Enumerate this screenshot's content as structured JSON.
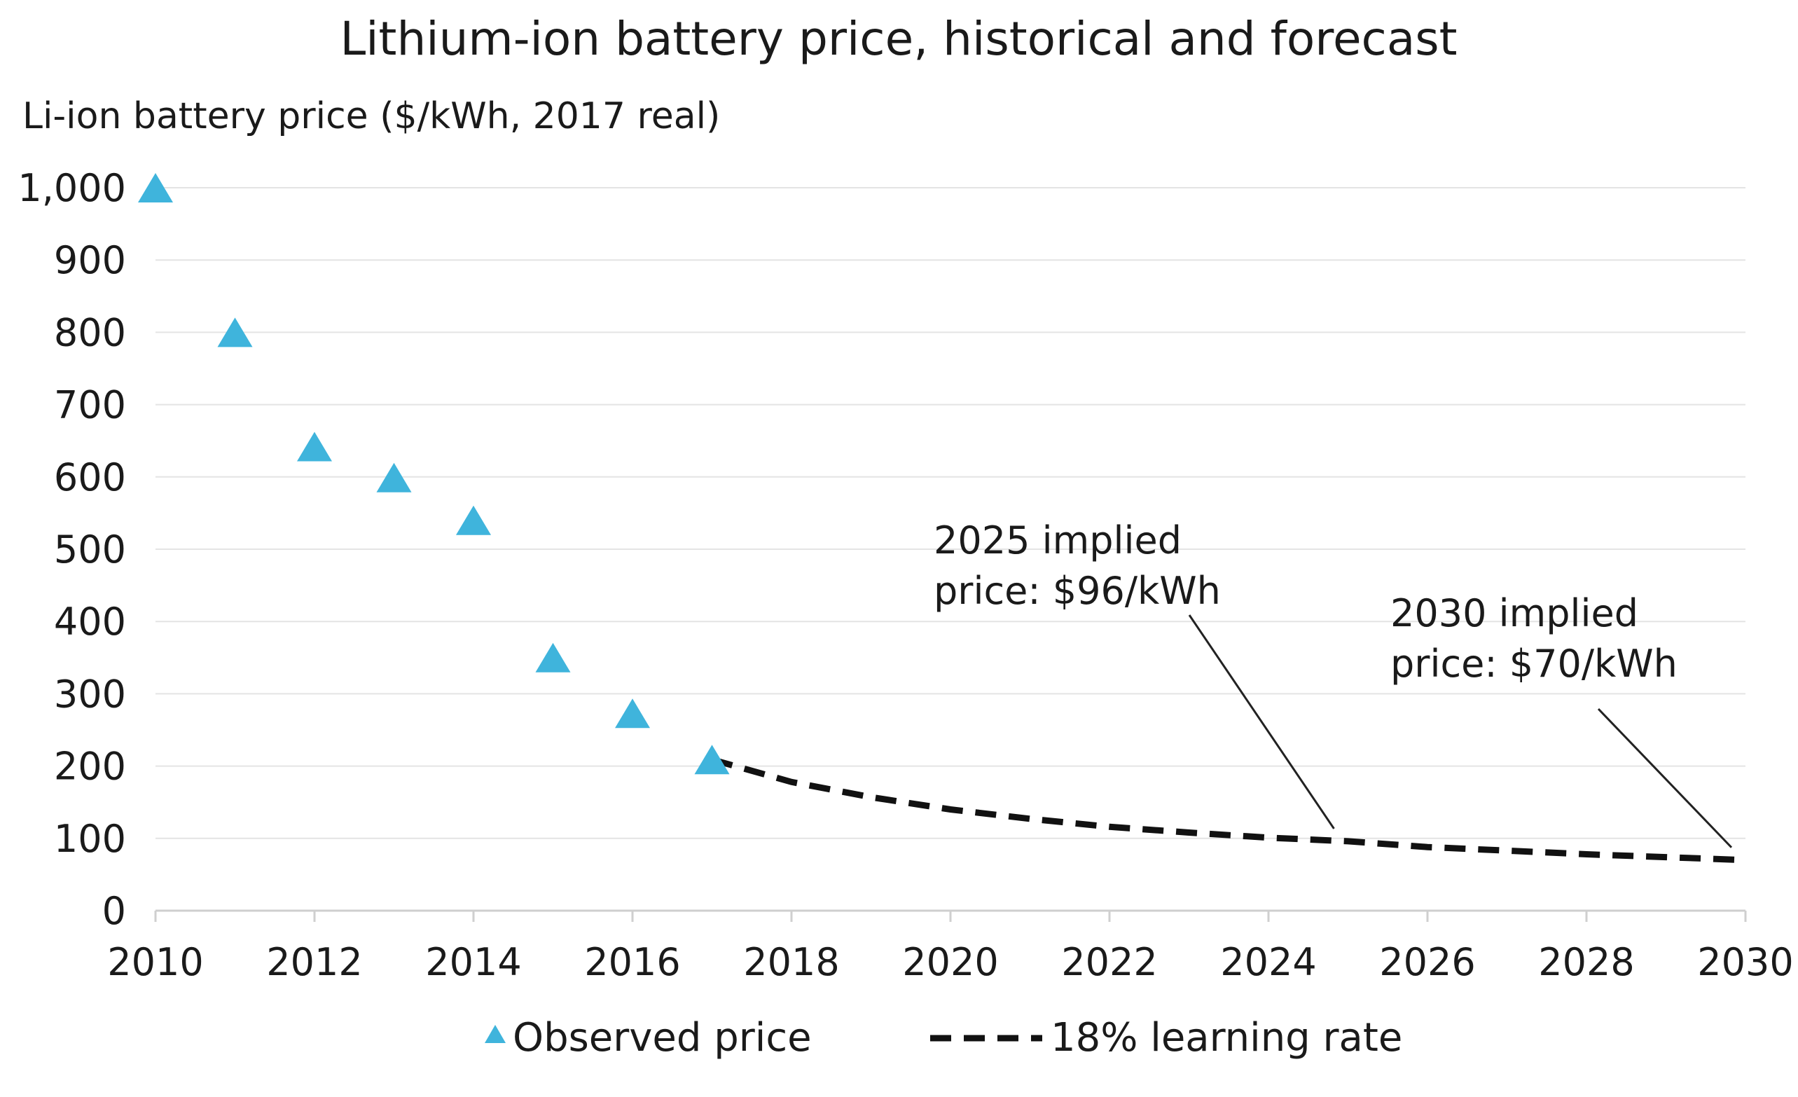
{
  "chart_data": {
    "type": "scatter",
    "title": "Lithium-ion battery price, historical and forecast",
    "ylabel": "Li-ion battery price ($/kWh, 2017 real)",
    "xlabel": "",
    "xlim": [
      2010,
      2030
    ],
    "ylim": [
      0,
      1000
    ],
    "x_ticks": [
      "2010",
      "2012",
      "2014",
      "2016",
      "2018",
      "2020",
      "2022",
      "2024",
      "2026",
      "2028",
      "2030"
    ],
    "y_ticks": [
      "0",
      "100",
      "200",
      "300",
      "400",
      "500",
      "600",
      "700",
      "800",
      "900",
      "1,000"
    ],
    "grid": true,
    "legend_position": "bottom",
    "series": [
      {
        "name": "Observed price",
        "kind": "triangle-markers",
        "color": "#3fb4dc",
        "x": [
          2010,
          2011,
          2012,
          2013,
          2014,
          2015,
          2016,
          2017
        ],
        "values": [
          1000,
          800,
          642,
          599,
          540,
          350,
          273,
          209
        ]
      },
      {
        "name": "18% learning rate",
        "kind": "dashed-line",
        "color": "#111111",
        "x": [
          2017,
          2018,
          2019,
          2020,
          2021,
          2022,
          2023,
          2024,
          2025,
          2026,
          2027,
          2028,
          2029,
          2030
        ],
        "values": [
          209,
          178,
          157,
          140,
          127,
          116,
          108,
          101,
          96,
          88,
          83,
          78,
          74,
          70
        ]
      }
    ],
    "annotations": [
      {
        "lines": [
          "2025 implied",
          "price: $96/kWh"
        ],
        "x": 2025,
        "y": 96
      },
      {
        "lines": [
          "2030 implied",
          "price: $70/kWh"
        ],
        "x": 2030,
        "y": 70
      }
    ]
  }
}
